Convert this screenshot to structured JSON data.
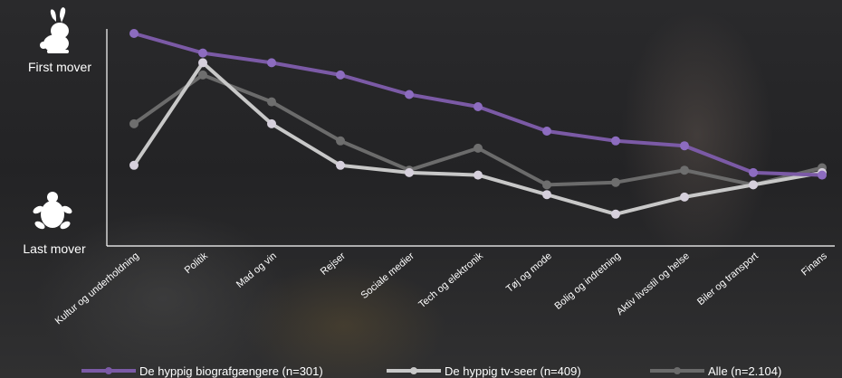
{
  "chart_data": {
    "type": "line",
    "categories": [
      "Kultur og underholdning",
      "Politik",
      "Mad og vin",
      "Rejser",
      "Sociale medier",
      "Tech og elektronik",
      "Tøj og mode",
      "Bolig og indretning",
      "Aktiv livsstil og helse",
      "Biler og transport",
      "Finans"
    ],
    "ylabel_top": "First mover",
    "ylabel_bottom": "Last mover",
    "ylim": [
      0,
      100
    ],
    "series": [
      {
        "name": "De hyppig biografgængere (n=301)",
        "color": "#7b5aa6",
        "values": [
          90,
          82,
          78,
          73,
          65,
          60,
          50,
          46,
          44,
          33,
          32
        ]
      },
      {
        "name": "De hyppig tv-seer (n=409)",
        "color": "#c8c8c8",
        "values": [
          36,
          78,
          53,
          36,
          33,
          32,
          24,
          16,
          23,
          28,
          33
        ]
      },
      {
        "name": "Alle (n=2.104)",
        "color": "#6b6b6b",
        "values": [
          53,
          73,
          62,
          46,
          34,
          43,
          28,
          29,
          34,
          28,
          35
        ]
      }
    ]
  },
  "icons": {
    "top": "rabbit-icon",
    "bottom": "turtle-icon"
  }
}
